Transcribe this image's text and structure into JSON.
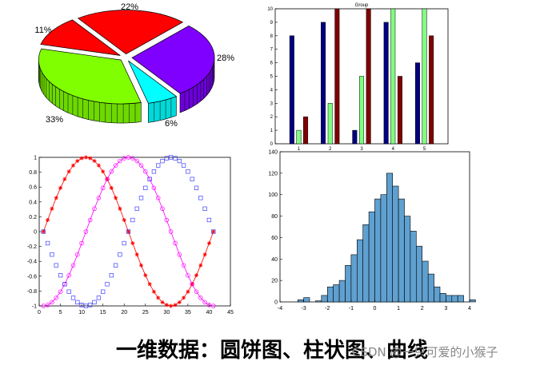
{
  "caption": "一维数据：圆饼图、柱状图、曲线",
  "watermark": "CSDN @一只可爱的小猴子",
  "chart_data": [
    {
      "type": "pie",
      "style": "3d-exploded",
      "slices": [
        {
          "label": "22%",
          "value": 22,
          "color": "#ff0000"
        },
        {
          "label": "28%",
          "value": 28,
          "color": "#7f00ff"
        },
        {
          "label": "6%",
          "value": 6,
          "color": "#00ffff"
        },
        {
          "label": "33%",
          "value": 33,
          "color": "#80ff00"
        },
        {
          "label": "11%",
          "value": 11,
          "color": "#ff0000"
        }
      ]
    },
    {
      "type": "bar",
      "title": "Group",
      "categories": [
        "1",
        "2",
        "3",
        "4",
        "5"
      ],
      "ylim": [
        0,
        10
      ],
      "yticks": [
        "0",
        "1",
        "2",
        "3",
        "4",
        "5",
        "6",
        "7",
        "8",
        "9",
        "10"
      ],
      "series": [
        {
          "values": [
            8,
            9,
            1,
            9,
            6
          ],
          "color": "#000080"
        },
        {
          "values": [
            1,
            3,
            5,
            10,
            10
          ],
          "color": "#80ff80"
        },
        {
          "values": [
            2,
            10,
            10,
            5,
            8
          ],
          "color": "#800000"
        }
      ]
    },
    {
      "type": "line",
      "xlim": [
        0,
        45
      ],
      "ylim": [
        -1,
        1
      ],
      "xticks": [
        "0",
        "5",
        "10",
        "15",
        "20",
        "25",
        "30",
        "35",
        "40",
        "45"
      ],
      "yticks": [
        "-1",
        "-0.8",
        "-0.6",
        "-0.4",
        "-0.2",
        "0",
        "0.2",
        "0.4",
        "0.6",
        "0.8",
        "1"
      ],
      "x_range": [
        1,
        41
      ],
      "series": [
        {
          "function": "sin((x-1)*pi/20)",
          "marker": "*",
          "color": "#ff0000"
        },
        {
          "function": "sin((x-11)*pi/20)",
          "marker": "o",
          "color": "#ff00ff"
        },
        {
          "function": "sin((x-21)*pi/20)",
          "marker": "s",
          "color": "#4040ff"
        }
      ]
    },
    {
      "type": "histogram",
      "xlim": [
        -4,
        4
      ],
      "ylim": [
        0,
        140
      ],
      "xticks": [
        "-4",
        "-3",
        "-2",
        "-1",
        "0",
        "1",
        "2",
        "3",
        "4"
      ],
      "yticks": [
        "0",
        "20",
        "40",
        "60",
        "80",
        "100",
        "120",
        "140"
      ],
      "bin_start": -3.25,
      "bin_width": 0.25,
      "counts": [
        2,
        4,
        0,
        1,
        6,
        14,
        16,
        20,
        34,
        44,
        58,
        72,
        84,
        96,
        100,
        120,
        108,
        96,
        80,
        66,
        52,
        38,
        26,
        14,
        8,
        6,
        6,
        6,
        0,
        2
      ],
      "color": "#5fa0d0"
    }
  ]
}
